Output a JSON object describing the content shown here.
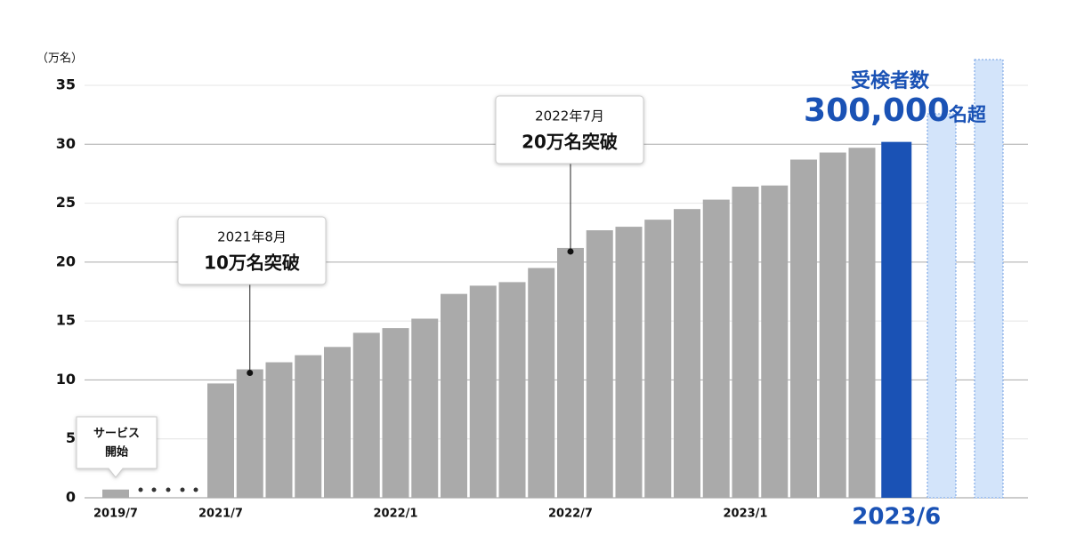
{
  "chart_data": {
    "type": "bar",
    "y_unit": "（万名）",
    "categories": [
      "2019/7",
      "2021/7",
      null,
      null,
      null,
      null,
      null,
      "2022/1",
      null,
      null,
      null,
      null,
      null,
      "2022/7",
      null,
      null,
      null,
      null,
      null,
      "2023/1",
      null,
      null,
      null,
      null,
      "2023/6"
    ],
    "values": [
      0.7,
      9.7,
      10.9,
      11.5,
      12.1,
      12.8,
      14.0,
      14.4,
      15.2,
      17.3,
      18.0,
      18.3,
      19.5,
      21.2,
      22.7,
      23.0,
      23.6,
      24.5,
      25.3,
      26.4,
      26.5,
      28.7,
      29.3,
      29.7,
      30.2
    ],
    "colors": [
      "#aaaaaa",
      "#aaaaaa",
      "#aaaaaa",
      "#aaaaaa",
      "#aaaaaa",
      "#aaaaaa",
      "#aaaaaa",
      "#aaaaaa",
      "#aaaaaa",
      "#aaaaaa",
      "#aaaaaa",
      "#aaaaaa",
      "#aaaaaa",
      "#aaaaaa",
      "#aaaaaa",
      "#aaaaaa",
      "#aaaaaa",
      "#aaaaaa",
      "#aaaaaa",
      "#aaaaaa",
      "#aaaaaa",
      "#aaaaaa",
      "#aaaaaa",
      "#aaaaaa",
      "#1a52b5"
    ],
    "ylim": [
      0,
      35
    ],
    "yticks": [
      0,
      5,
      10,
      15,
      20,
      25,
      30,
      35
    ],
    "grid": true,
    "annotations": [
      {
        "date": "2021年8月",
        "text": "10万名突破"
      },
      {
        "date": "2022年7月",
        "text": "20万名突破"
      }
    ],
    "start_note": [
      "サービス",
      "開始"
    ],
    "headline": {
      "label": "受検者数",
      "number": "300,000",
      "suffix": "名超"
    }
  }
}
